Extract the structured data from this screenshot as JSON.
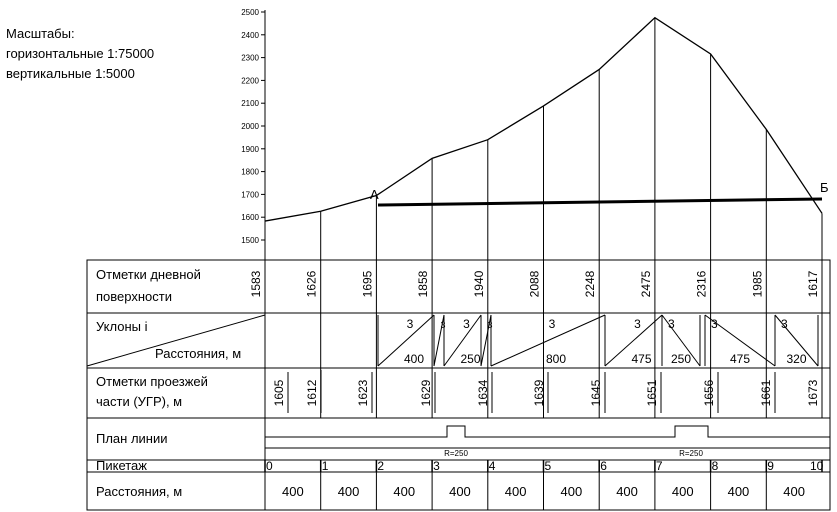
{
  "scales": {
    "title": "Масштабы:",
    "horizontal": "горизонтальные 1:75000",
    "vertical": "вертикальные 1:5000"
  },
  "profile": {
    "ylim": [
      1500,
      2500
    ],
    "yticks": [
      1500,
      1600,
      1700,
      1800,
      1900,
      2000,
      2100,
      2200,
      2300,
      2400,
      2500
    ],
    "point_a": "А",
    "point_b": "Б"
  },
  "table": {
    "row_labels": [
      [
        "Отметки дневной",
        "поверхности"
      ],
      [
        "Уклоны i",
        "Расстояния, м"
      ],
      [
        "Отметки проезжей",
        "части (УГР), м"
      ],
      [
        "План линии"
      ],
      [
        "Пикетаж"
      ],
      [
        "Расстояния, м"
      ]
    ],
    "ground_elevations": [
      1583,
      1626,
      1695,
      1858,
      1940,
      2088,
      2248,
      2475,
      2316,
      1985,
      1617
    ],
    "slopes": [
      {
        "grade": "3",
        "distance": 400
      },
      {
        "grade": "3"
      },
      {
        "grade": "3",
        "distance": 250
      },
      {
        "grade": "3"
      },
      {
        "grade": "3",
        "distance": 800
      },
      {
        "grade": "3",
        "distance": 475
      },
      {
        "grade": "3",
        "distance": 250
      },
      {
        "grade": "3",
        "distance": 475
      },
      {
        "grade": "3",
        "distance": 320
      }
    ],
    "road_elevations": [
      1605,
      1612,
      1623,
      1629,
      1634,
      1639,
      1645,
      1651,
      1656,
      1661,
      1673
    ],
    "curves": [
      "R=250",
      "R=250"
    ],
    "pickets": [
      0,
      1,
      2,
      3,
      4,
      5,
      6,
      7,
      8,
      9,
      10
    ],
    "distances": [
      400,
      400,
      400,
      400,
      400,
      400,
      400,
      400,
      400,
      400
    ]
  }
}
